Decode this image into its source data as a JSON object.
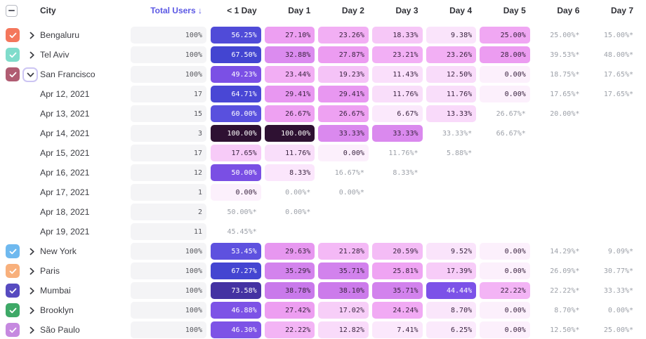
{
  "header": {
    "select_all_state": "indeterminate",
    "columns": [
      "City",
      "Total Users ↓",
      "< 1 Day",
      "Day 1",
      "Day 2",
      "Day 3",
      "Day 4",
      "Day 5",
      "Day 6",
      "Day 7"
    ]
  },
  "icons": {
    "select_all": "indeterminate-dash",
    "row_checkbox": "check",
    "collapsed": "chevron-right",
    "expanded": "chevron-down"
  },
  "colors": {
    "sort_header": "#5B58E4",
    "header_text": "#2F3036",
    "label_text": "#3B3C42",
    "total_pill_bg": "#F4F4F6",
    "total_pill_text": "#55565C",
    "estimated_text": "#9DA1A9",
    "pill_text_dark": "#3A2440",
    "pill_text_light": "#FFFFFF",
    "checkbox_border": "#B8BBC3",
    "expand_ring": "#CCC5F3",
    "chevron": "#3A3B41"
  },
  "heat_scale": [
    [
      0,
      "#FCF0FC"
    ],
    [
      7,
      "#FBE9FC"
    ],
    [
      10,
      "#FAE3FB"
    ],
    [
      13,
      "#F9DBFA"
    ],
    [
      17,
      "#F7CEF8"
    ],
    [
      21,
      "#F4BAF6"
    ],
    [
      24,
      "#F1ABF4"
    ],
    [
      28,
      "#EC9CF1"
    ],
    [
      31,
      "#E392F0"
    ],
    [
      34,
      "#D787EE"
    ],
    [
      38,
      "#CC7BEB"
    ],
    [
      42,
      "#BE6FE9"
    ],
    [
      44,
      "#7C52E8"
    ],
    [
      47,
      "#7D53E6"
    ],
    [
      50,
      "#7A4FE4"
    ],
    [
      53,
      "#6152E0"
    ],
    [
      56,
      "#4F4BD8"
    ],
    [
      60,
      "#5950DE"
    ],
    [
      64,
      "#4B48D6"
    ],
    [
      68,
      "#4244D0"
    ],
    [
      74,
      "#44319E"
    ],
    [
      100,
      "#2E1132"
    ]
  ],
  "white_text_threshold": 43,
  "rows": [
    {
      "type": "city",
      "label": "Bengaluru",
      "checkbox_color": "#F4775C",
      "checked": true,
      "expanded": false,
      "total": "100%",
      "cells": [
        {
          "display": "56.25%",
          "value": 56.25
        },
        {
          "display": "27.10%",
          "value": 27.1
        },
        {
          "display": "23.26%",
          "value": 23.26
        },
        {
          "display": "18.33%",
          "value": 18.33
        },
        {
          "display": "9.38%",
          "value": 9.38
        },
        {
          "display": "25.00%",
          "value": 25.0
        },
        {
          "display": "25.00%*",
          "value": 25.0,
          "estimated": true
        },
        {
          "display": "15.00%*",
          "value": 15.0,
          "estimated": true
        }
      ]
    },
    {
      "type": "city",
      "label": "Tel Aviv",
      "checkbox_color": "#7FDCCB",
      "checked": true,
      "expanded": false,
      "total": "100%",
      "cells": [
        {
          "display": "67.50%",
          "value": 67.5
        },
        {
          "display": "32.88%",
          "value": 32.88
        },
        {
          "display": "27.87%",
          "value": 27.87
        },
        {
          "display": "23.21%",
          "value": 23.21
        },
        {
          "display": "23.26%",
          "value": 23.26
        },
        {
          "display": "28.00%",
          "value": 28.0
        },
        {
          "display": "39.53%*",
          "value": 39.53,
          "estimated": true
        },
        {
          "display": "48.00%*",
          "value": 48.0,
          "estimated": true
        }
      ]
    },
    {
      "type": "city",
      "label": "San Francisco",
      "checkbox_color": "#B05C72",
      "checked": true,
      "expanded": true,
      "total": "100%",
      "cells": [
        {
          "display": "49.23%",
          "value": 49.23
        },
        {
          "display": "23.44%",
          "value": 23.44
        },
        {
          "display": "19.23%",
          "value": 19.23
        },
        {
          "display": "11.43%",
          "value": 11.43
        },
        {
          "display": "12.50%",
          "value": 12.5
        },
        {
          "display": "0.00%",
          "value": 0.0
        },
        {
          "display": "18.75%*",
          "value": 18.75,
          "estimated": true
        },
        {
          "display": "17.65%*",
          "value": 17.65,
          "estimated": true
        }
      ]
    },
    {
      "type": "date",
      "label": "Apr 12, 2021",
      "total": "17",
      "cells": [
        {
          "display": "64.71%",
          "value": 64.71
        },
        {
          "display": "29.41%",
          "value": 29.41
        },
        {
          "display": "29.41%",
          "value": 29.41
        },
        {
          "display": "11.76%",
          "value": 11.76
        },
        {
          "display": "11.76%",
          "value": 11.76
        },
        {
          "display": "0.00%",
          "value": 0.0
        },
        {
          "display": "17.65%*",
          "value": 17.65,
          "estimated": true
        },
        {
          "display": "17.65%*",
          "value": 17.65,
          "estimated": true
        }
      ]
    },
    {
      "type": "date",
      "label": "Apr 13, 2021",
      "total": "15",
      "cells": [
        {
          "display": "60.00%",
          "value": 60.0
        },
        {
          "display": "26.67%",
          "value": 26.67
        },
        {
          "display": "26.67%",
          "value": 26.67
        },
        {
          "display": "6.67%",
          "value": 6.67
        },
        {
          "display": "13.33%",
          "value": 13.33
        },
        {
          "display": "26.67%*",
          "value": 26.67,
          "estimated": true
        },
        {
          "display": "20.00%*",
          "value": 20.0,
          "estimated": true
        },
        null
      ]
    },
    {
      "type": "date",
      "label": "Apr 14, 2021",
      "total": "3",
      "cells": [
        {
          "display": "100.00%",
          "value": 100.0
        },
        {
          "display": "100.00%",
          "value": 100.0
        },
        {
          "display": "33.33%",
          "value": 33.33
        },
        {
          "display": "33.33%",
          "value": 33.33
        },
        {
          "display": "33.33%*",
          "value": 33.33,
          "estimated": true
        },
        {
          "display": "66.67%*",
          "value": 66.67,
          "estimated": true
        },
        null,
        null
      ]
    },
    {
      "type": "date",
      "label": "Apr 15, 2021",
      "total": "17",
      "cells": [
        {
          "display": "17.65%",
          "value": 17.65
        },
        {
          "display": "11.76%",
          "value": 11.76
        },
        {
          "display": "0.00%",
          "value": 0.0
        },
        {
          "display": "11.76%*",
          "value": 11.76,
          "estimated": true
        },
        {
          "display": "5.88%*",
          "value": 5.88,
          "estimated": true
        },
        null,
        null,
        null
      ]
    },
    {
      "type": "date",
      "label": "Apr 16, 2021",
      "total": "12",
      "cells": [
        {
          "display": "50.00%",
          "value": 50.0
        },
        {
          "display": "8.33%",
          "value": 8.33
        },
        {
          "display": "16.67%*",
          "value": 16.67,
          "estimated": true
        },
        {
          "display": "8.33%*",
          "value": 8.33,
          "estimated": true
        },
        null,
        null,
        null,
        null
      ]
    },
    {
      "type": "date",
      "label": "Apr 17, 2021",
      "total": "1",
      "cells": [
        {
          "display": "0.00%",
          "value": 0.0
        },
        {
          "display": "0.00%*",
          "value": 0.0,
          "estimated": true
        },
        {
          "display": "0.00%*",
          "value": 0.0,
          "estimated": true
        },
        null,
        null,
        null,
        null,
        null
      ]
    },
    {
      "type": "date",
      "label": "Apr 18, 2021",
      "total": "2",
      "cells": [
        {
          "display": "50.00%*",
          "value": 50.0,
          "estimated": true
        },
        {
          "display": "0.00%*",
          "value": 0.0,
          "estimated": true
        },
        null,
        null,
        null,
        null,
        null,
        null
      ]
    },
    {
      "type": "date",
      "label": "Apr 19, 2021",
      "total": "11",
      "cells": [
        {
          "display": "45.45%*",
          "value": 45.45,
          "estimated": true
        },
        null,
        null,
        null,
        null,
        null,
        null,
        null
      ]
    },
    {
      "type": "city",
      "label": "New York",
      "checkbox_color": "#6FB9EF",
      "checked": true,
      "expanded": false,
      "total": "100%",
      "cells": [
        {
          "display": "53.45%",
          "value": 53.45
        },
        {
          "display": "29.63%",
          "value": 29.63
        },
        {
          "display": "21.28%",
          "value": 21.28
        },
        {
          "display": "20.59%",
          "value": 20.59
        },
        {
          "display": "9.52%",
          "value": 9.52
        },
        {
          "display": "0.00%",
          "value": 0.0
        },
        {
          "display": "14.29%*",
          "value": 14.29,
          "estimated": true
        },
        {
          "display": "9.09%*",
          "value": 9.09,
          "estimated": true
        }
      ]
    },
    {
      "type": "city",
      "label": "Paris",
      "checkbox_color": "#F8B07C",
      "checked": true,
      "expanded": false,
      "total": "100%",
      "cells": [
        {
          "display": "67.27%",
          "value": 67.27
        },
        {
          "display": "35.29%",
          "value": 35.29
        },
        {
          "display": "35.71%",
          "value": 35.71
        },
        {
          "display": "25.81%",
          "value": 25.81
        },
        {
          "display": "17.39%",
          "value": 17.39
        },
        {
          "display": "0.00%",
          "value": 0.0
        },
        {
          "display": "26.09%*",
          "value": 26.09,
          "estimated": true
        },
        {
          "display": "30.77%*",
          "value": 30.77,
          "estimated": true
        }
      ]
    },
    {
      "type": "city",
      "label": "Mumbai",
      "checkbox_color": "#574BC0",
      "checked": true,
      "expanded": false,
      "total": "100%",
      "cells": [
        {
          "display": "73.58%",
          "value": 73.58
        },
        {
          "display": "38.78%",
          "value": 38.78
        },
        {
          "display": "38.10%",
          "value": 38.1
        },
        {
          "display": "35.71%",
          "value": 35.71
        },
        {
          "display": "44.44%",
          "value": 44.44
        },
        {
          "display": "22.22%",
          "value": 22.22
        },
        {
          "display": "22.22%*",
          "value": 22.22,
          "estimated": true
        },
        {
          "display": "33.33%*",
          "value": 33.33,
          "estimated": true
        }
      ]
    },
    {
      "type": "city",
      "label": "Brooklyn",
      "checkbox_color": "#3EA967",
      "checked": true,
      "expanded": false,
      "total": "100%",
      "cells": [
        {
          "display": "46.88%",
          "value": 46.88
        },
        {
          "display": "27.42%",
          "value": 27.42
        },
        {
          "display": "17.02%",
          "value": 17.02
        },
        {
          "display": "24.24%",
          "value": 24.24
        },
        {
          "display": "8.70%",
          "value": 8.7
        },
        {
          "display": "0.00%",
          "value": 0.0
        },
        {
          "display": "8.70%*",
          "value": 8.7,
          "estimated": true
        },
        {
          "display": "0.00%*",
          "value": 0.0,
          "estimated": true
        }
      ]
    },
    {
      "type": "city",
      "label": "São Paulo",
      "checkbox_color": "#C689E0",
      "checked": true,
      "expanded": false,
      "total": "100%",
      "cells": [
        {
          "display": "46.30%",
          "value": 46.3
        },
        {
          "display": "22.22%",
          "value": 22.22
        },
        {
          "display": "12.82%",
          "value": 12.82
        },
        {
          "display": "7.41%",
          "value": 7.41
        },
        {
          "display": "6.25%",
          "value": 6.25
        },
        {
          "display": "0.00%",
          "value": 0.0
        },
        {
          "display": "12.50%*",
          "value": 12.5,
          "estimated": true
        },
        {
          "display": "25.00%*",
          "value": 25.0,
          "estimated": true
        }
      ]
    }
  ]
}
